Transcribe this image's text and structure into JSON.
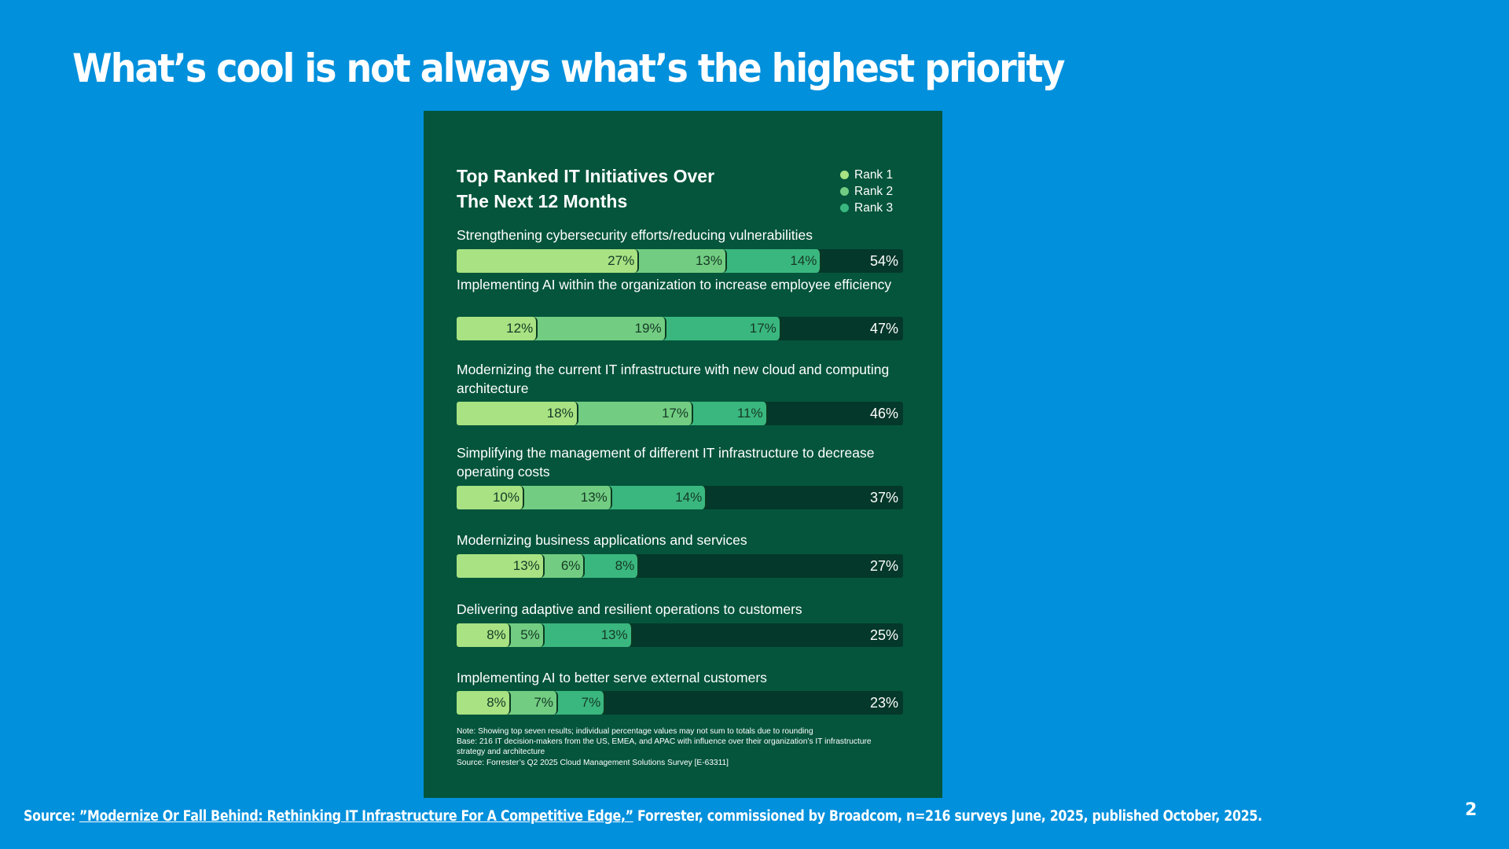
{
  "slide": {
    "title": "What’s cool is not always what’s the highest priority",
    "page_number": "2",
    "source_prefix": "Source: ",
    "source_link": "”Modernize Or Fall Behind: Rethinking IT Infrastructure For A Competitive Edge,”",
    "source_suffix": " Forrester, commissioned by Broadcom, n=216 surveys June, 2025, published October, 2025."
  },
  "colors": {
    "background": "#0090dc",
    "panel": "#04553b",
    "track": "#04382a",
    "rank1": "#a8e283",
    "rank2": "#72cd82",
    "rank3": "#3ab77f"
  },
  "chart_data": {
    "type": "bar",
    "orientation": "horizontal-stacked",
    "title": "Top Ranked IT Initiatives Over The Next 12 Months",
    "title_lines": [
      "Top Ranked IT Initiatives Over",
      "The Next 12 Months"
    ],
    "legend": [
      "Rank 1",
      "Rank 2",
      "Rank 3"
    ],
    "legend_position": "top-right",
    "unit": "%",
    "categories": [
      "Strengthening cybersecurity efforts/reducing vulnerabilities",
      "Implementing AI within the organization to increase employee efficiency",
      "Modernizing the current IT infrastructure with new cloud and computing architecture",
      "Simplifying the management of different IT infrastructure to decrease operating costs",
      "Modernizing business applications and services",
      "Delivering adaptive and resilient operations to customers",
      "Implementing AI to better serve external customers"
    ],
    "series": [
      {
        "name": "Rank 1",
        "values": [
          27,
          12,
          18,
          10,
          13,
          8,
          8
        ]
      },
      {
        "name": "Rank 2",
        "values": [
          13,
          19,
          17,
          13,
          6,
          5,
          7
        ]
      },
      {
        "name": "Rank 3",
        "values": [
          14,
          17,
          11,
          14,
          8,
          13,
          7
        ]
      }
    ],
    "totals": [
      54,
      47,
      46,
      37,
      27,
      25,
      23
    ],
    "rows": [
      {
        "label": "Strengthening cybersecurity efforts/reducing vulnerabilities",
        "r1": "27%",
        "r2": "13%",
        "r3": "14%",
        "total": "54%"
      },
      {
        "label": "Implementing AI within the organization to increase employee efficiency",
        "r1": "12%",
        "r2": "19%",
        "r3": "17%",
        "total": "47%"
      },
      {
        "label": "Modernizing the current IT infrastructure with new cloud and computing architecture",
        "r1": "18%",
        "r2": "17%",
        "r3": "11%",
        "total": "46%"
      },
      {
        "label": "Simplifying the management of different IT infrastructure to decrease operating costs",
        "r1": "10%",
        "r2": "13%",
        "r3": "14%",
        "total": "37%"
      },
      {
        "label": "Modernizing business applications and services",
        "r1": "13%",
        "r2": "6%",
        "r3": "8%",
        "total": "27%"
      },
      {
        "label": "Delivering adaptive and resilient operations to customers",
        "r1": "8%",
        "r2": "5%",
        "r3": "13%",
        "total": "25%"
      },
      {
        "label": "Implementing AI to better serve external customers",
        "r1": "8%",
        "r2": "7%",
        "r3": "7%",
        "total": "23%"
      }
    ],
    "notes": [
      "Note: Showing top seven results; individual percentage values may not sum to totals due to rounding",
      "Base: 216 IT decision-makers from the US, EMEA, and APAC with influence over their organization’s IT infrastructure strategy and architecture",
      "Source: Forrester’s Q2 2025 Cloud Management Solutions Survey [E-63311]"
    ]
  }
}
